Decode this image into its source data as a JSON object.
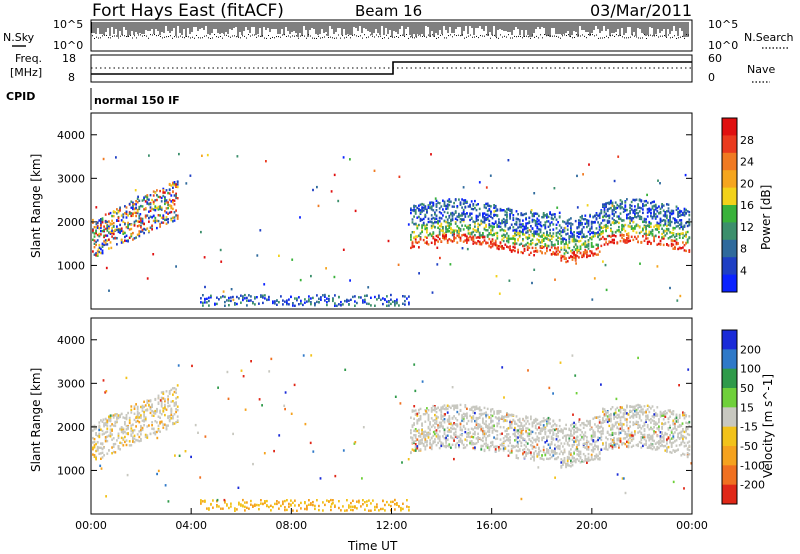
{
  "header": {
    "title": "Fort Hays East (fitACF)",
    "beam": "Beam 16",
    "date": "03/Mar/2011"
  },
  "top_panels": {
    "nsky_label": "N.Sky",
    "nsky_ticks": [
      "10^5",
      "10^0"
    ],
    "nsearch_label": "N.Search",
    "nsearch_ticks": [
      "10^5",
      "10^0"
    ],
    "freq_label_1": "Freq.",
    "freq_label_2": "[MHz]",
    "freq_ticks": [
      "18",
      "8"
    ],
    "nave_label": "Nave",
    "nave_ticks": [
      "60",
      "0"
    ],
    "cpid_label": "CPID",
    "cpid_text": "normal 150 IF"
  },
  "colors": {
    "power_scale": [
      "#0a22ff",
      "#1e3fc4",
      "#2f6a9c",
      "#3c8f6c",
      "#39b23a",
      "#f2d21a",
      "#f5a51e",
      "#f07a22",
      "#ea3a1e",
      "#e01010"
    ],
    "velocity_scale": [
      "#1a2bd8",
      "#2f79c8",
      "#2f9a4a",
      "#6fd03a",
      "#c8c8c0",
      "#f2c21a",
      "#f5a21e",
      "#f07020",
      "#e02818"
    ]
  },
  "chart_data": [
    {
      "type": "heatmap",
      "name": "power",
      "ylabel": "Slant Range [km]",
      "xlabel": "",
      "ylim": [
        0,
        4500
      ],
      "yticks": [
        "1000",
        "2000",
        "3000",
        "4000"
      ],
      "colorbar_label": "Power [dB]",
      "colorbar_ticks": [
        "4",
        "8",
        "12",
        "16",
        "20",
        "24",
        "28"
      ]
    },
    {
      "type": "heatmap",
      "name": "velocity",
      "ylabel": "Slant Range [km]",
      "xlabel": "Time UT",
      "ylim": [
        0,
        4500
      ],
      "yticks": [
        "1000",
        "2000",
        "3000",
        "4000"
      ],
      "xticks": [
        "00:00",
        "04:00",
        "08:00",
        "12:00",
        "16:00",
        "20:00",
        "00:00"
      ],
      "colorbar_label": "Velocity [m s^-1]",
      "colorbar_ticks": [
        "200",
        "100",
        "50",
        "15",
        "-15",
        "-50",
        "-100",
        "-200"
      ]
    }
  ]
}
